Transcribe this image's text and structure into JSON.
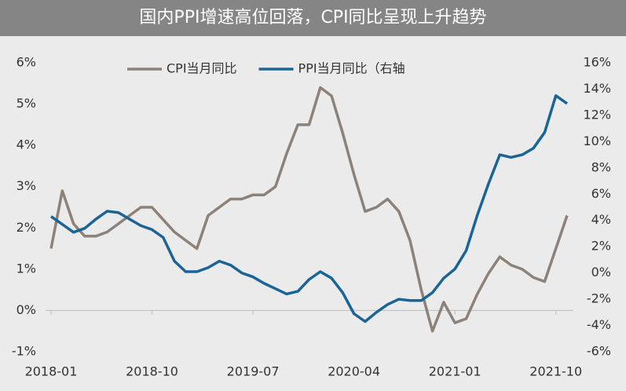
{
  "chart_data": {
    "type": "line",
    "title": "国内PPI增速高位回落，CPI同比呈现上升趋势",
    "categories": [
      "2018-01",
      null,
      null,
      null,
      null,
      null,
      null,
      null,
      null,
      "2018-10",
      null,
      null,
      null,
      null,
      null,
      null,
      null,
      null,
      "2019-07",
      null,
      null,
      null,
      null,
      null,
      null,
      null,
      null,
      "2020-04",
      null,
      null,
      null,
      null,
      null,
      null,
      null,
      null,
      "2021-01",
      null,
      null,
      null,
      null,
      null,
      null,
      null,
      null,
      "2021-10",
      null
    ],
    "series": [
      {
        "name": "CPI当月同比",
        "color": "#8c8279",
        "values": [
          1.5,
          2.9,
          2.1,
          1.8,
          1.8,
          1.9,
          2.1,
          2.3,
          2.5,
          2.5,
          2.2,
          1.9,
          1.7,
          1.5,
          2.3,
          2.5,
          2.7,
          2.7,
          2.8,
          2.8,
          3.0,
          3.8,
          4.5,
          4.5,
          5.4,
          5.2,
          4.3,
          3.3,
          2.4,
          2.5,
          2.7,
          2.4,
          1.7,
          0.5,
          -0.5,
          0.2,
          -0.3,
          -0.2,
          0.4,
          0.9,
          1.3,
          1.1,
          1.0,
          0.8,
          0.7,
          1.5,
          2.3
        ]
      },
      {
        "name": "PPI当月同比（右轴",
        "color": "#1a6496",
        "axis": "y2",
        "values": [
          4.3,
          3.7,
          3.1,
          3.4,
          4.1,
          4.7,
          4.6,
          4.1,
          3.6,
          3.3,
          2.7,
          0.9,
          0.1,
          0.1,
          0.4,
          0.9,
          0.6,
          0.0,
          -0.3,
          -0.8,
          -1.2,
          -1.6,
          -1.4,
          -0.5,
          0.1,
          -0.4,
          -1.5,
          -3.1,
          -3.7,
          -3.0,
          -2.4,
          -2.0,
          -2.1,
          -2.1,
          -1.5,
          -0.4,
          0.3,
          1.7,
          4.4,
          6.8,
          9.0,
          8.8,
          9.0,
          9.5,
          10.7,
          13.5,
          12.9
        ]
      }
    ],
    "ylim": [
      -1,
      6
    ],
    "yticks": [
      {
        "value": -1,
        "label": "-1%"
      },
      {
        "value": 0,
        "label": "0%"
      },
      {
        "value": 1,
        "label": "1%"
      },
      {
        "value": 2,
        "label": "2%"
      },
      {
        "value": 3,
        "label": "3%"
      },
      {
        "value": 4,
        "label": "4%"
      },
      {
        "value": 5,
        "label": "5%"
      },
      {
        "value": 6,
        "label": "6%"
      }
    ],
    "y2lim": [
      -6,
      16
    ],
    "y2ticks": [
      {
        "value": -6,
        "label": "-6%"
      },
      {
        "value": -4,
        "label": "-4%"
      },
      {
        "value": -2,
        "label": "-2%"
      },
      {
        "value": 0,
        "label": "0%"
      },
      {
        "value": 2,
        "label": "2%"
      },
      {
        "value": 4,
        "label": "4%"
      },
      {
        "value": 6,
        "label": "6%"
      },
      {
        "value": 8,
        "label": "8%"
      },
      {
        "value": 10,
        "label": "10%"
      },
      {
        "value": 12,
        "label": "12%"
      },
      {
        "value": 14,
        "label": "14%"
      },
      {
        "value": 16,
        "label": "16%"
      }
    ],
    "legend": "top"
  }
}
